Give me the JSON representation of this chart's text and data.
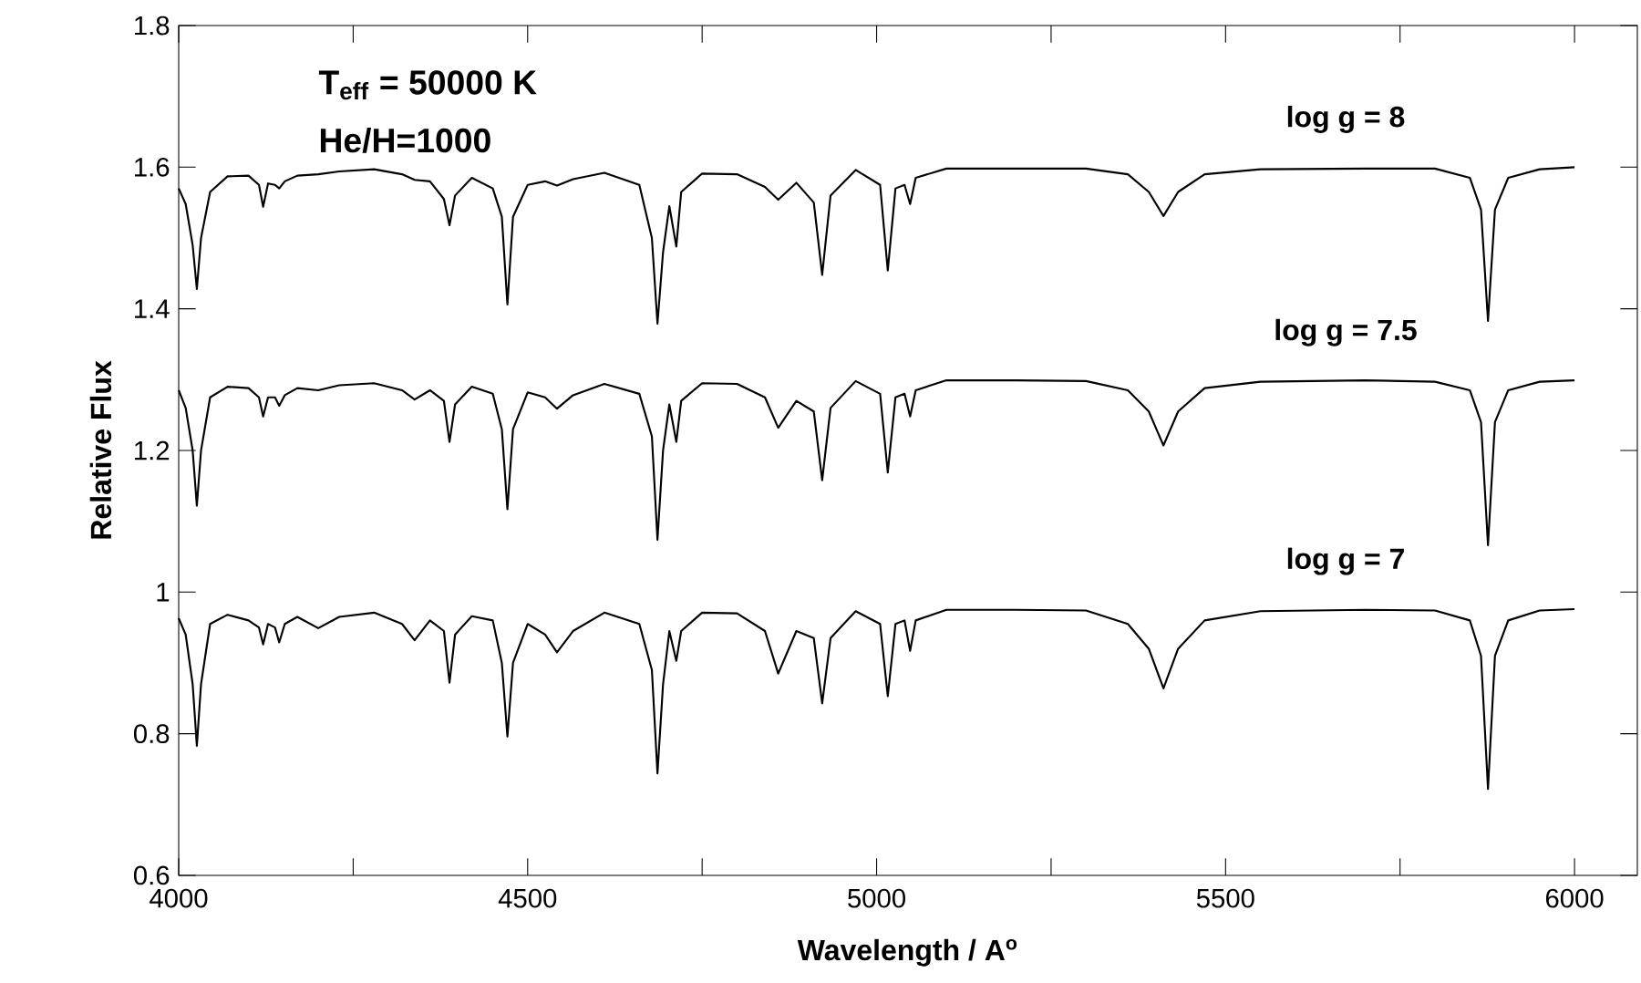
{
  "chart_data": {
    "type": "line",
    "xlabel": "Wavelength / A$^{o}$",
    "ylabel": "Relative Flux",
    "annotations": [
      "T$_{eff}$ = 50000 K",
      "He/H=1000"
    ],
    "xlim": [
      4000,
      6090
    ],
    "ylim": [
      0.6,
      1.8
    ],
    "xticks": [
      4000,
      {
        "value": 4250,
        "label": null
      },
      4500,
      {
        "value": 4750,
        "label": null
      },
      5000,
      {
        "value": 5250,
        "label": null
      },
      5500,
      {
        "value": 5750,
        "label": null
      },
      6000
    ],
    "yticks": [
      0.6,
      0.8,
      1,
      1.2,
      1.4,
      1.6,
      1.8
    ],
    "x": [
      4000,
      4010,
      4020,
      4026,
      4032,
      4045,
      4070,
      4100,
      4115,
      4121,
      4128,
      4138,
      4144,
      4152,
      4170,
      4200,
      4230,
      4280,
      4320,
      4338,
      4360,
      4380,
      4388,
      4396,
      4420,
      4450,
      4463,
      4471,
      4479,
      4500,
      4525,
      4542,
      4565,
      4610,
      4660,
      4678,
      4686,
      4694,
      4703,
      4713,
      4720,
      4750,
      4800,
      4840,
      4859,
      4885,
      4910,
      4922,
      4934,
      4970,
      5005,
      5016,
      5027,
      5040,
      5048,
      5056,
      5100,
      5200,
      5300,
      5360,
      5390,
      5411,
      5432,
      5470,
      5550,
      5700,
      5800,
      5850,
      5866,
      5876,
      5886,
      5905,
      5950,
      6000
    ],
    "series": [
      {
        "name": "log g = 8",
        "color": "#000000",
        "values": [
          1.57,
          1.548,
          1.49,
          1.428,
          1.5,
          1.565,
          1.587,
          1.588,
          1.575,
          1.544,
          1.577,
          1.575,
          1.57,
          1.58,
          1.588,
          1.59,
          1.594,
          1.597,
          1.59,
          1.582,
          1.58,
          1.555,
          1.518,
          1.56,
          1.585,
          1.57,
          1.53,
          1.406,
          1.53,
          1.575,
          1.58,
          1.574,
          1.583,
          1.592,
          1.575,
          1.5,
          1.379,
          1.48,
          1.545,
          1.488,
          1.565,
          1.591,
          1.59,
          1.572,
          1.554,
          1.578,
          1.55,
          1.448,
          1.56,
          1.596,
          1.575,
          1.454,
          1.57,
          1.575,
          1.548,
          1.585,
          1.598,
          1.598,
          1.598,
          1.59,
          1.565,
          1.531,
          1.565,
          1.59,
          1.597,
          1.598,
          1.598,
          1.585,
          1.54,
          1.383,
          1.54,
          1.585,
          1.597,
          1.6
        ]
      },
      {
        "name": "log g = 7.5",
        "color": "#000000",
        "values": [
          1.285,
          1.26,
          1.2,
          1.122,
          1.2,
          1.275,
          1.29,
          1.288,
          1.275,
          1.248,
          1.275,
          1.275,
          1.263,
          1.278,
          1.288,
          1.285,
          1.292,
          1.295,
          1.285,
          1.272,
          1.285,
          1.27,
          1.212,
          1.265,
          1.29,
          1.28,
          1.23,
          1.117,
          1.23,
          1.282,
          1.275,
          1.259,
          1.278,
          1.294,
          1.28,
          1.22,
          1.074,
          1.2,
          1.265,
          1.212,
          1.27,
          1.295,
          1.294,
          1.275,
          1.232,
          1.27,
          1.255,
          1.158,
          1.26,
          1.298,
          1.28,
          1.169,
          1.275,
          1.28,
          1.248,
          1.285,
          1.299,
          1.299,
          1.298,
          1.285,
          1.255,
          1.207,
          1.255,
          1.288,
          1.297,
          1.299,
          1.297,
          1.285,
          1.24,
          1.066,
          1.24,
          1.285,
          1.297,
          1.299
        ]
      },
      {
        "name": "log g = 7",
        "color": "#000000",
        "values": [
          0.963,
          0.94,
          0.87,
          0.783,
          0.87,
          0.955,
          0.968,
          0.96,
          0.95,
          0.926,
          0.955,
          0.95,
          0.929,
          0.955,
          0.965,
          0.949,
          0.965,
          0.971,
          0.955,
          0.932,
          0.96,
          0.945,
          0.872,
          0.94,
          0.966,
          0.96,
          0.9,
          0.796,
          0.9,
          0.955,
          0.94,
          0.915,
          0.945,
          0.971,
          0.955,
          0.89,
          0.744,
          0.87,
          0.945,
          0.903,
          0.945,
          0.971,
          0.97,
          0.945,
          0.885,
          0.945,
          0.935,
          0.843,
          0.935,
          0.973,
          0.955,
          0.853,
          0.955,
          0.96,
          0.917,
          0.96,
          0.975,
          0.975,
          0.974,
          0.955,
          0.92,
          0.864,
          0.92,
          0.96,
          0.973,
          0.975,
          0.974,
          0.96,
          0.91,
          0.722,
          0.91,
          0.96,
          0.974,
          0.976
        ]
      }
    ]
  }
}
